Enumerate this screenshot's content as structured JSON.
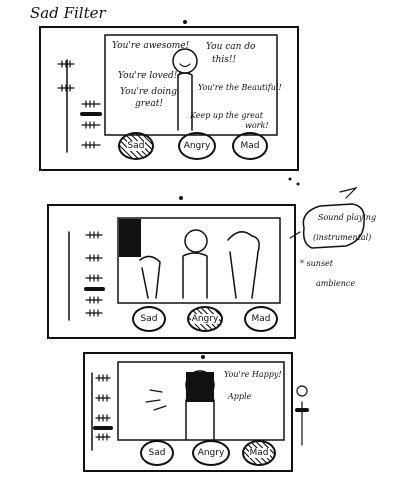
{
  "title": "Sad Filter",
  "frame1": {
    "messages": [
      "You're awesome!",
      "You can do",
      "this!!",
      "You're loved!!",
      "You're doing",
      "great!",
      "You're the Beautiful!",
      "Keep up the great",
      "work!"
    ],
    "buttons": [
      "Sad",
      "Angry",
      "Mad"
    ]
  },
  "frame2": {
    "buttons": [
      "Sad",
      "Angry",
      "Mad"
    ],
    "note_sound": "Sound playing",
    "note_instrumental": "(instrumental)",
    "note_sunset": "* sunset",
    "note_ambience": "ambience"
  },
  "frame3": {
    "message": "You're Happy!",
    "label": "Apple",
    "buttons": [
      "Sad",
      "Angry",
      "Mad"
    ]
  }
}
